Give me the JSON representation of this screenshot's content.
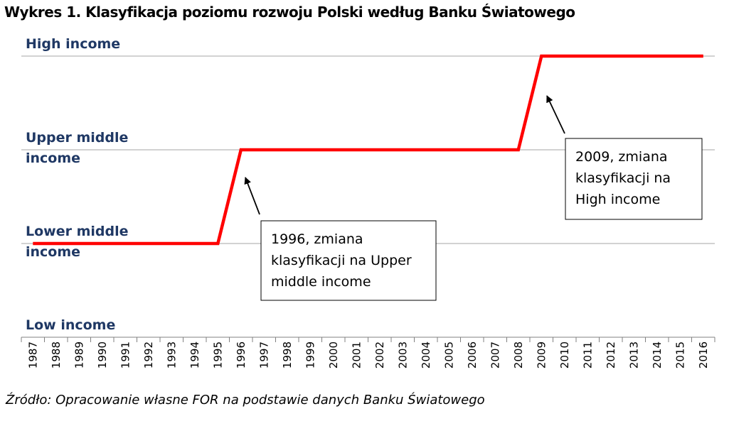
{
  "title": "Wykres 1. Klasyfikacja poziomu rozwoju Polski według Banku Światowego",
  "source": "Źródło: Opracowanie własne FOR na podstawie danych Banku Światowego",
  "chart_data": {
    "type": "line",
    "levels": [
      {
        "id": "low",
        "lines": [
          "Low income"
        ],
        "y": 0
      },
      {
        "id": "lower-middle",
        "lines": [
          "Lower middle",
          "income"
        ],
        "y": 1
      },
      {
        "id": "upper-middle",
        "lines": [
          "Upper middle",
          "income"
        ],
        "y": 2
      },
      {
        "id": "high",
        "lines": [
          "High income"
        ],
        "y": 3
      }
    ],
    "x": [
      "1987",
      "1988",
      "1989",
      "1990",
      "1991",
      "1992",
      "1993",
      "1994",
      "1995",
      "1996",
      "1997",
      "1998",
      "1999",
      "2000",
      "2001",
      "2002",
      "2003",
      "2004",
      "2005",
      "2006",
      "2007",
      "2008",
      "2009",
      "2010",
      "2011",
      "2012",
      "2013",
      "2014",
      "2015",
      "2016"
    ],
    "series": [
      {
        "values": [
          1,
          1,
          1,
          1,
          1,
          1,
          1,
          1,
          1,
          2,
          2,
          2,
          2,
          2,
          2,
          2,
          2,
          2,
          2,
          2,
          2,
          2,
          3,
          3,
          3,
          3,
          3,
          3,
          3,
          3
        ]
      }
    ],
    "ylim": [
      0,
      3
    ],
    "grid": true,
    "line_color": "#ff0000",
    "level_label_color": "#1f3864",
    "annotations": [
      {
        "id": "ann-1996",
        "lines": [
          "1996, zmiana",
          "klasyfikacji na Upper",
          "middle income"
        ],
        "target_x": "1996",
        "target_y": 2
      },
      {
        "id": "ann-2009",
        "lines": [
          "2009, zmiana",
          "klasyfikacji na",
          "High income"
        ],
        "target_x": "2009",
        "target_y": 3
      }
    ]
  }
}
